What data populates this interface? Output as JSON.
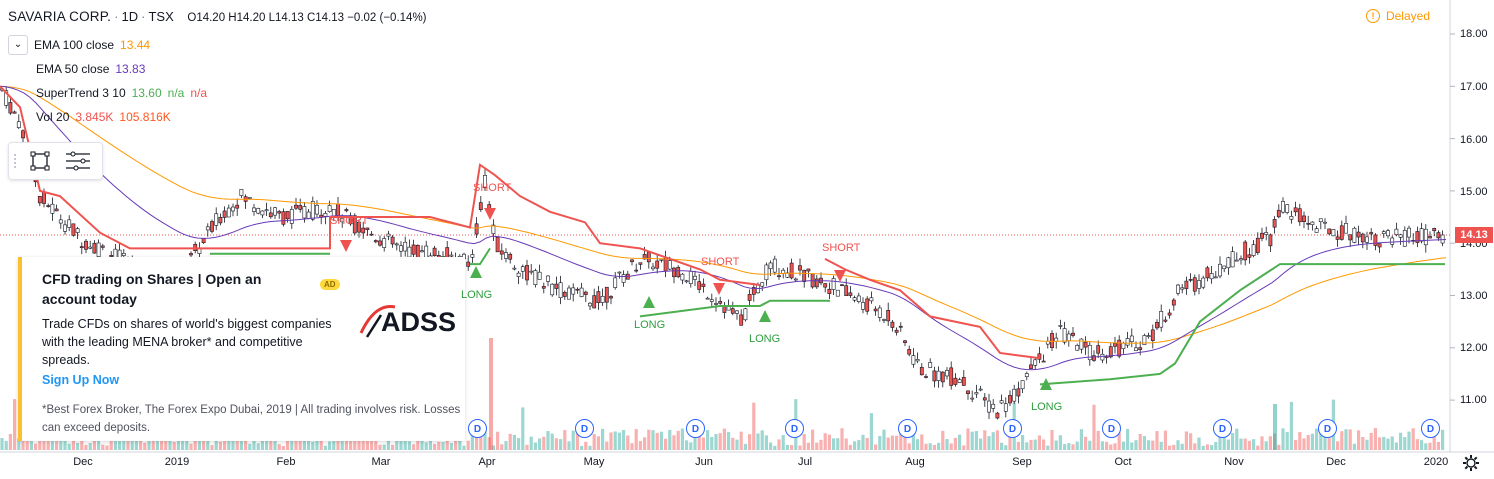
{
  "header": {
    "symbol": "SAVARIA CORP.",
    "interval": "1D",
    "exchange": "TSX",
    "ohlc": "O14.20  H14.20  L14.13  C14.13  −0.02 (−0.14%)"
  },
  "status": {
    "delayed": "Delayed"
  },
  "legend": [
    {
      "name": "EMA 100 close",
      "values": [
        "13.44"
      ],
      "colors": [
        "#ff9800"
      ]
    },
    {
      "name": "EMA 50 close",
      "values": [
        "13.83"
      ],
      "colors": [
        "#673ab7"
      ]
    },
    {
      "name": "SuperTrend 3 10",
      "values": [
        "13.60",
        "n/a",
        "n/a"
      ],
      "colors": [
        "#4caf50",
        "#4caf50",
        "#ef5350"
      ]
    },
    {
      "name": "Vol 20",
      "values": [
        "3.845K",
        "105.816K"
      ],
      "colors": [
        "#ef5350",
        "#ff5722"
      ]
    }
  ],
  "ad": {
    "title": "CFD trading on Shares | Open an account today",
    "badge": "AD",
    "logo": "ADSS",
    "body": "Trade CFDs on shares of world's biggest companies with the leading MENA broker* and competitive spreads.",
    "cta": "Sign Up Now",
    "disclaimer": "*Best Forex Broker, The Forex Expo Dubai, 2019 | All trading involves risk. Losses can exceed deposits."
  },
  "price_axis": {
    "ticks": [
      "18.00",
      "17.00",
      "16.00",
      "15.00",
      "14.00",
      "13.00",
      "12.00",
      "11.00"
    ],
    "last_price": "14.13"
  },
  "time_axis": {
    "labels": [
      "Dec",
      "2019",
      "Feb",
      "Mar",
      "Apr",
      "May",
      "Jun",
      "Jul",
      "Aug",
      "Sep",
      "Oct",
      "Nov",
      "Dec",
      "2020"
    ]
  },
  "dividend_marker": "D",
  "signals": {
    "short": "SHORT",
    "long": "LONG"
  },
  "colors": {
    "up": "#26a69a",
    "down": "#ef5350",
    "ema100": "#ff9800",
    "ema50": "#673ab7",
    "st_up": "#4caf50",
    "st_down": "#ef5350"
  }
}
